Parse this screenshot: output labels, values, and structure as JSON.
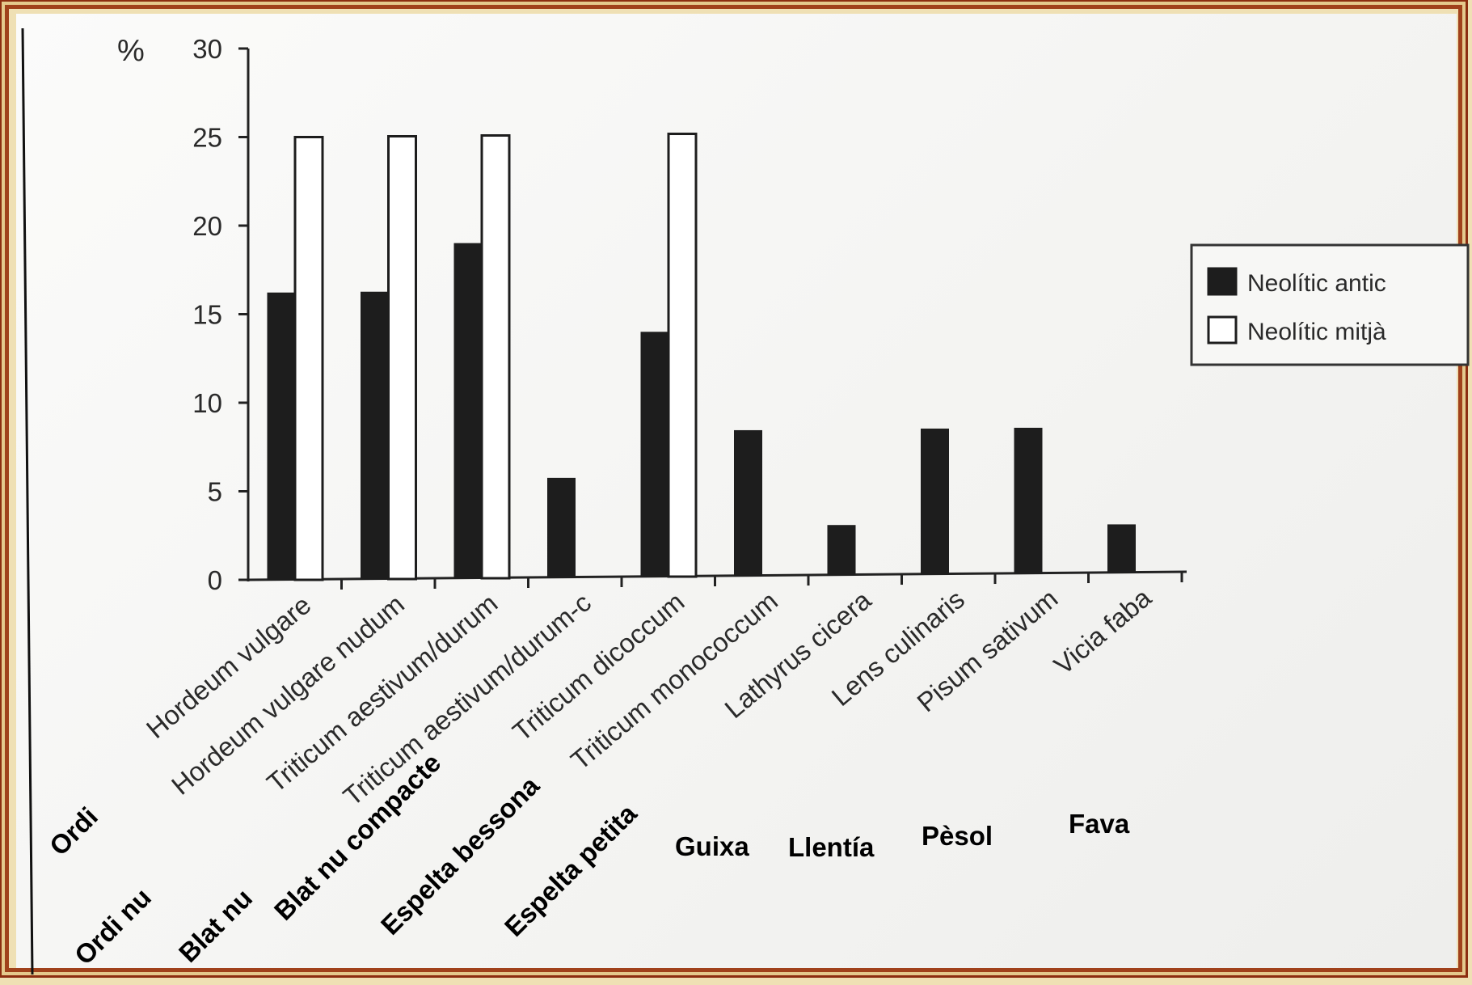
{
  "chart_data": {
    "type": "bar",
    "ylabel": "%",
    "ylim": [
      0,
      30
    ],
    "yticks": [
      0,
      5,
      10,
      15,
      20,
      25,
      30
    ],
    "categories": [
      "Hordeum vulgare",
      "Hordeum vulgare nudum",
      "Triticum aestivum/durum",
      "Triticum aestivum/durum-c",
      "Triticum dicoccum",
      "Triticum monococcum",
      "Lathyrus cicera",
      "Lens culinaris",
      "Pisum sativum",
      "Vicia faba"
    ],
    "series": [
      {
        "name": "Neolític antic",
        "color": "#1d1d1d",
        "values": [
          16.2,
          16.2,
          18.9,
          5.6,
          13.8,
          8.2,
          2.8,
          8.2,
          8.2,
          2.7
        ]
      },
      {
        "name": "Neolític mitjà",
        "color": "#ffffff",
        "values": [
          25,
          25,
          25,
          0,
          25,
          0,
          0,
          0,
          0,
          0
        ]
      }
    ],
    "legend": "right",
    "common_names": [
      "Ordi",
      "Ordi nu",
      "Blat nu",
      "Blat nu compacte",
      "Espelta bessona",
      "Espelta petita",
      "Guixa",
      "Llentía",
      "Pèsol",
      "Fava"
    ]
  }
}
